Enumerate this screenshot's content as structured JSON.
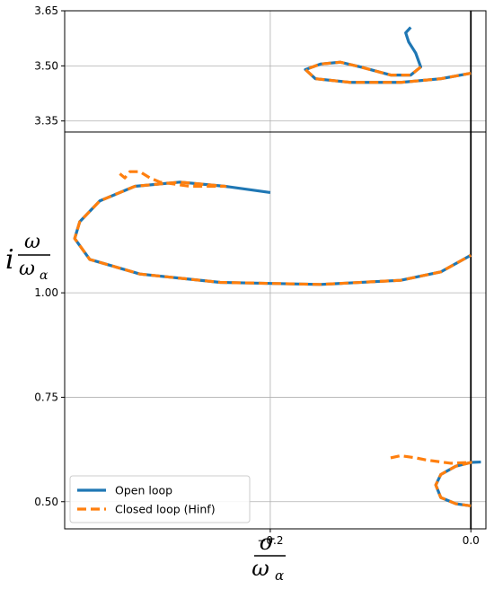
{
  "chart_data": {
    "type": "line",
    "title": "",
    "xlabel": "σ / ω_α",
    "xlabel_num": "σ",
    "xlabel_den": "ω",
    "xlabel_den_sub": "α",
    "ylabel_prefix": "i",
    "ylabel_num": "ω",
    "ylabel_den": "ω",
    "ylabel_den_sub": "α",
    "legend": {
      "position": "lower-left",
      "entries": [
        {
          "name": "Open loop",
          "color": "#1f77b4",
          "style": "solid"
        },
        {
          "name": "Closed loop (Hinf)",
          "color": "#ff7f0e",
          "style": "dashed"
        }
      ]
    },
    "grid": true,
    "xlim": [
      -0.405,
      0.015
    ],
    "xticks": [
      -0.2,
      0.0
    ],
    "xtick_labels": [
      "−0.2",
      "0.0"
    ],
    "panels": [
      {
        "id": "upper",
        "ylim": [
          3.32,
          3.65
        ],
        "yticks": [
          3.35,
          3.5,
          3.65
        ],
        "ytick_labels": [
          "3.35",
          "3.50",
          "3.65"
        ],
        "series": [
          {
            "name": "Open loop",
            "color": "#1f77b4",
            "points": [
              [
                -0.06,
                3.605
              ],
              [
                -0.065,
                3.59
              ],
              [
                -0.062,
                3.565
              ],
              [
                -0.055,
                3.535
              ],
              [
                -0.05,
                3.497
              ],
              [
                -0.06,
                3.475
              ],
              [
                -0.08,
                3.475
              ],
              [
                -0.11,
                3.497
              ],
              [
                -0.13,
                3.51
              ],
              [
                -0.15,
                3.505
              ],
              [
                -0.165,
                3.49
              ],
              [
                -0.155,
                3.465
              ],
              [
                -0.12,
                3.455
              ],
              [
                -0.07,
                3.455
              ],
              [
                -0.03,
                3.465
              ],
              [
                0.0,
                3.48
              ]
            ]
          },
          {
            "name": "Closed loop (Hinf)",
            "color": "#ff7f0e",
            "points": [
              [
                -0.05,
                3.497
              ],
              [
                -0.06,
                3.475
              ],
              [
                -0.08,
                3.475
              ],
              [
                -0.11,
                3.497
              ],
              [
                -0.13,
                3.51
              ],
              [
                -0.15,
                3.505
              ],
              [
                -0.165,
                3.49
              ],
              [
                -0.155,
                3.465
              ],
              [
                -0.12,
                3.455
              ],
              [
                -0.07,
                3.455
              ],
              [
                -0.03,
                3.465
              ],
              [
                0.0,
                3.48
              ]
            ]
          }
        ]
      },
      {
        "id": "lower",
        "ylim": [
          0.435,
          1.385
        ],
        "yticks": [
          0.5,
          0.75,
          1.0
        ],
        "ytick_labels": [
          "0.50",
          "0.75",
          "1.00"
        ],
        "series": [
          {
            "name": "Open loop",
            "color": "#1f77b4",
            "points": [
              [
                -0.2,
                1.24
              ],
              [
                -0.245,
                1.255
              ],
              [
                -0.29,
                1.265
              ],
              [
                -0.335,
                1.255
              ],
              [
                -0.37,
                1.22
              ],
              [
                -0.39,
                1.17
              ],
              [
                -0.395,
                1.13
              ],
              [
                -0.38,
                1.08
              ],
              [
                -0.33,
                1.045
              ],
              [
                -0.25,
                1.025
              ],
              [
                -0.15,
                1.02
              ],
              [
                -0.07,
                1.03
              ],
              [
                -0.03,
                1.05
              ],
              [
                0.0,
                1.09
              ]
            ]
          },
          {
            "name": "Closed loop (Hinf)",
            "color": "#ff7f0e",
            "points": [
              [
                -0.35,
                1.285
              ],
              [
                -0.345,
                1.275
              ],
              [
                -0.34,
                1.29
              ],
              [
                -0.33,
                1.29
              ],
              [
                -0.32,
                1.275
              ],
              [
                -0.31,
                1.265
              ],
              [
                -0.28,
                1.255
              ],
              [
                -0.245,
                1.255
              ],
              [
                -0.29,
                1.265
              ],
              [
                -0.335,
                1.255
              ],
              [
                -0.37,
                1.22
              ],
              [
                -0.39,
                1.17
              ],
              [
                -0.395,
                1.13
              ],
              [
                -0.38,
                1.08
              ],
              [
                -0.33,
                1.045
              ],
              [
                -0.25,
                1.025
              ],
              [
                -0.15,
                1.02
              ],
              [
                -0.07,
                1.03
              ],
              [
                -0.03,
                1.05
              ],
              [
                0.0,
                1.09
              ]
            ]
          },
          {
            "name": "Open loop",
            "color": "#1f77b4",
            "points": [
              [
                0.01,
                0.595
              ],
              [
                0.0,
                0.594
              ],
              [
                -0.015,
                0.585
              ],
              [
                -0.03,
                0.565
              ],
              [
                -0.035,
                0.54
              ],
              [
                -0.03,
                0.51
              ],
              [
                -0.015,
                0.495
              ],
              [
                0.0,
                0.49
              ]
            ]
          },
          {
            "name": "Closed loop (Hinf)",
            "color": "#ff7f0e",
            "points": [
              [
                -0.08,
                0.605
              ],
              [
                -0.07,
                0.61
              ],
              [
                -0.055,
                0.605
              ],
              [
                -0.045,
                0.6
              ],
              [
                -0.02,
                0.592
              ],
              [
                0.0,
                0.594
              ],
              [
                -0.015,
                0.585
              ],
              [
                -0.03,
                0.565
              ],
              [
                -0.035,
                0.54
              ],
              [
                -0.03,
                0.51
              ],
              [
                -0.015,
                0.495
              ],
              [
                0.0,
                0.49
              ]
            ]
          }
        ]
      }
    ]
  }
}
